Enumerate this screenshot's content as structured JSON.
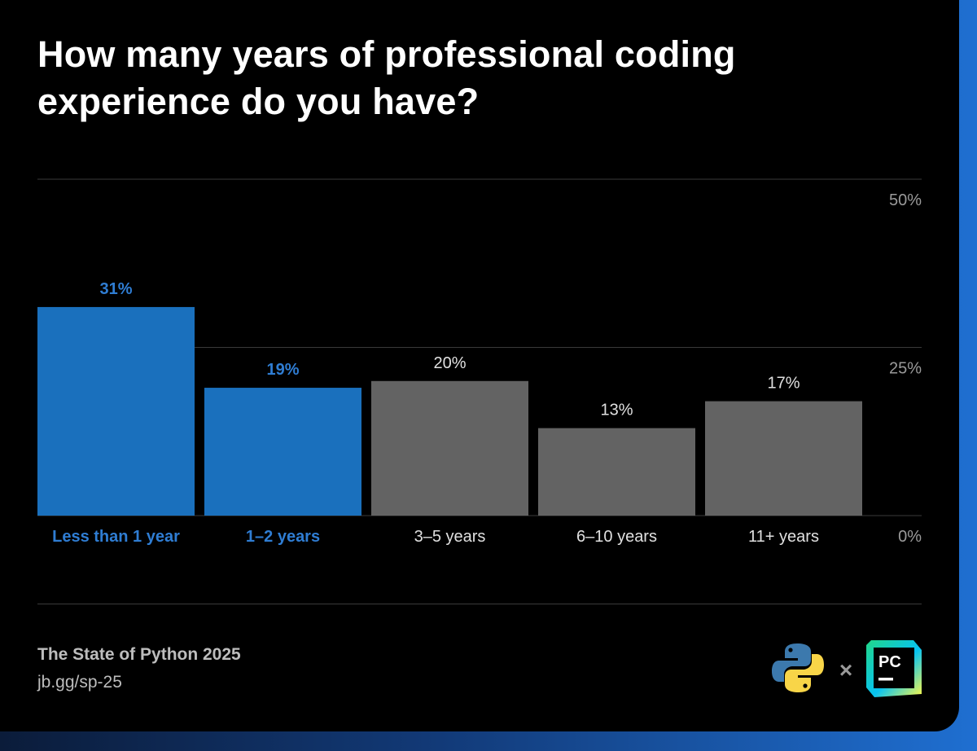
{
  "header": {
    "title": "How many years of professional coding experience do you have?"
  },
  "chart_data": {
    "type": "bar",
    "title": "How many years of professional coding experience do you have?",
    "categories": [
      "Less than 1 year",
      "1–2 years",
      "3–5 years",
      "6–10 years",
      "11+ years"
    ],
    "values": [
      31,
      19,
      20,
      13,
      17
    ],
    "value_labels": [
      "31%",
      "19%",
      "20%",
      "13%",
      "17%"
    ],
    "highlighted": [
      true,
      true,
      false,
      false,
      false
    ],
    "ylim": [
      0,
      50
    ],
    "y_ticks": [
      {
        "value": 50,
        "label": "50%"
      },
      {
        "value": 25,
        "label": "25%"
      },
      {
        "value": 0,
        "label": "0%"
      }
    ],
    "xlabel": "",
    "ylabel": "",
    "grid": true,
    "colors": {
      "highlight": "#1a70bd",
      "highlight_text": "#2f7dd3",
      "default": "#636363",
      "default_text": "#e0e0e0",
      "axis_text": "#9a9a9a",
      "grid": "#3a3a3a"
    }
  },
  "footer": {
    "survey_name": "The State of Python 2025",
    "link": "jb.gg/sp-25"
  },
  "logos": {
    "python": "python-logo",
    "separator": "×",
    "pycharm": "PC"
  }
}
